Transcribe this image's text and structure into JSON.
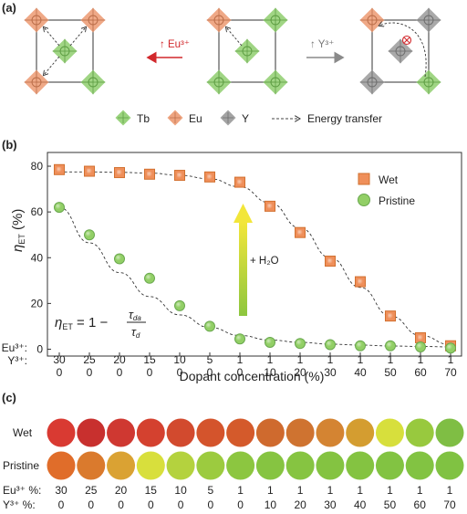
{
  "panel_a": {
    "label": "(a)",
    "arrow_left_label": "↑ Eu³⁺",
    "arrow_right_label": "↑ Y³⁺",
    "legend": [
      {
        "name": "Tb",
        "color": "#8fce6f"
      },
      {
        "name": "Eu",
        "color": "#ec9a72"
      },
      {
        "name": "Y",
        "color": "#9a9a9a"
      },
      {
        "name": "Energy transfer",
        "style": "dashed"
      }
    ],
    "colors": {
      "tb": "#8fce6f",
      "eu": "#ec9a72",
      "y": "#9a9a9a",
      "arrow_red": "#d2282c",
      "arrow_gray": "#8a8a8a"
    }
  },
  "panel_b": {
    "label": "(b)",
    "eu_row_label": "Eu³⁺:",
    "y_row_label": "Y³⁺:",
    "annotation": "+ H₂O",
    "formula": "η_ET = 1 − τ_da / τ_d"
  },
  "chart_data": {
    "type": "scatter",
    "xlabel": "Dopant concentration (%)",
    "ylabel": "η_ET (%)",
    "ylim": [
      -3,
      86
    ],
    "yticks": [
      0,
      20,
      40,
      60,
      80
    ],
    "categories_eu": [
      "30",
      "25",
      "20",
      "15",
      "10",
      "5",
      "1",
      "1",
      "1",
      "1",
      "1",
      "1",
      "1",
      "1"
    ],
    "categories_y": [
      "0",
      "0",
      "0",
      "0",
      "0",
      "0",
      "0",
      "10",
      "20",
      "30",
      "40",
      "50",
      "60",
      "70"
    ],
    "legend_position": "top-right",
    "series": [
      {
        "name": "Wet",
        "marker": "square",
        "color": "#ef8f5a",
        "values": [
          78.5,
          77.8,
          77.2,
          76.5,
          76,
          75.3,
          73,
          62.5,
          51,
          38.5,
          29.5,
          14.5,
          5,
          1.5
        ]
      },
      {
        "name": "Pristine",
        "marker": "circle",
        "color": "#92cf66",
        "values": [
          62,
          50,
          39.5,
          31,
          19,
          10,
          4.5,
          3,
          2.5,
          2,
          1.5,
          1.5,
          1,
          0.5
        ]
      }
    ],
    "fit_curves": {
      "wet": [
        [
          0,
          77.5
        ],
        [
          1,
          77.5
        ],
        [
          2,
          77.3
        ],
        [
          3,
          77
        ],
        [
          4,
          76
        ],
        [
          5,
          74.5
        ],
        [
          6,
          71
        ],
        [
          7,
          64
        ],
        [
          8,
          53
        ],
        [
          9,
          40
        ],
        [
          10,
          27
        ],
        [
          11,
          14.5
        ],
        [
          12,
          6
        ],
        [
          13,
          2
        ]
      ],
      "pristine": [
        [
          0,
          62
        ],
        [
          1,
          46.5
        ],
        [
          2,
          33.5
        ],
        [
          3,
          23
        ],
        [
          4,
          15
        ],
        [
          5,
          9.5
        ],
        [
          6,
          6
        ],
        [
          7,
          4
        ],
        [
          8,
          3
        ],
        [
          9,
          2.2
        ],
        [
          10,
          1.8
        ],
        [
          11,
          1.4
        ],
        [
          12,
          1.2
        ],
        [
          13,
          1
        ]
      ]
    }
  },
  "panel_c": {
    "label": "(c)",
    "row_wet": "Wet",
    "row_pristine": "Pristine",
    "eu_label": "Eu³⁺ %:",
    "y_label": "Y³⁺ %:",
    "eu_values": [
      "30",
      "25",
      "20",
      "15",
      "10",
      "5",
      "1",
      "1",
      "1",
      "1",
      "1",
      "1",
      "1",
      "1"
    ],
    "y_values": [
      "0",
      "0",
      "0",
      "0",
      "0",
      "0",
      "0",
      "10",
      "20",
      "30",
      "40",
      "50",
      "60",
      "70"
    ],
    "wet_colors": [
      "#d93a32",
      "#c8302e",
      "#cf3831",
      "#d4412f",
      "#d24a2e",
      "#d4542c",
      "#d45a2b",
      "#cf6a2e",
      "#cf7330",
      "#d48432",
      "#d49d30",
      "#d7df3c",
      "#98c93e",
      "#7fbe44"
    ],
    "pristine_colors": [
      "#e06d2a",
      "#da7a2d",
      "#daa233",
      "#d8df3c",
      "#b4d23e",
      "#9ccb3f",
      "#8cc640",
      "#86c441",
      "#86c441",
      "#84c341",
      "#84c341",
      "#82c342",
      "#82c342",
      "#80c242"
    ]
  }
}
